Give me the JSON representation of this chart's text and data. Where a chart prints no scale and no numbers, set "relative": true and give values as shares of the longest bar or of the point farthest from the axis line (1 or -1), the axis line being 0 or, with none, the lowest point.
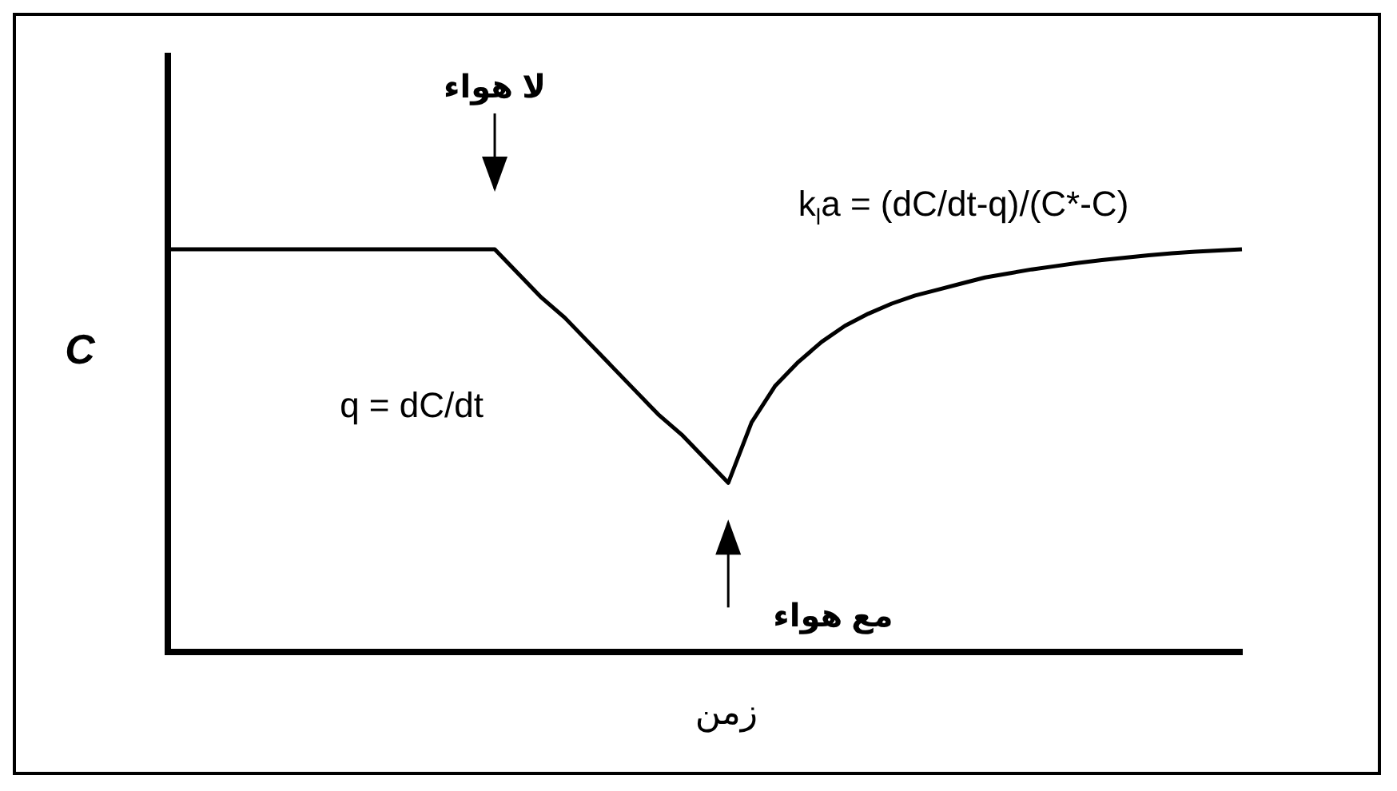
{
  "chart_data": {
    "type": "line",
    "relative": true,
    "xlabel": "زمن",
    "ylabel": "C",
    "categories": [
      null,
      null,
      null,
      null,
      null,
      null,
      null,
      null,
      null,
      null,
      null,
      null,
      null,
      null,
      null,
      null,
      null,
      null,
      null,
      null,
      null,
      null,
      null,
      null,
      null,
      null,
      null,
      null,
      null,
      null,
      null,
      null,
      null,
      null,
      null,
      null,
      null,
      null,
      null,
      null,
      null,
      null,
      null,
      null,
      null,
      null,
      null
    ],
    "series": [
      {
        "color": "#000000",
        "values": [
          1,
          1,
          1,
          1,
          1,
          1,
          1,
          1,
          1,
          1,
          1,
          1,
          1,
          1,
          1,
          0.94,
          0.88,
          0.83,
          0.77,
          0.71,
          0.65,
          0.59,
          0.54,
          0.48,
          0.42,
          0.57,
          0.66,
          0.72,
          0.77,
          0.81,
          0.84,
          0.865,
          0.885,
          0.9,
          0.915,
          0.93,
          0.94,
          0.95,
          0.958,
          0.966,
          0.973,
          0.979,
          0.985,
          0.99,
          0.994,
          0.997,
          1
        ]
      }
    ],
    "annotations": [
      "لا هواء",
      "مع هواء",
      "q = dC/dt",
      "k$_{l}$a = (dC/dt-q)/(C*-C)"
    ],
    "grid": false,
    "legend": false,
    "marker": "none",
    "line_style": "solid"
  }
}
